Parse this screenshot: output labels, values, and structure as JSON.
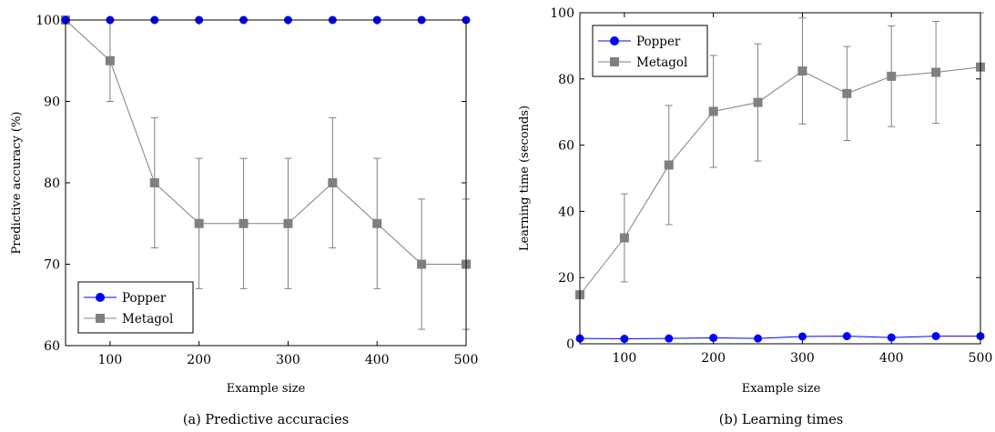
{
  "chart_data": [
    {
      "type": "line",
      "caption": "(a) Predictive accuracies",
      "xlabel": "Example size",
      "ylabel": "Predictive accuracy (%)",
      "xlim": [
        50,
        500
      ],
      "ylim": [
        60,
        100
      ],
      "xticks": [
        100,
        200,
        300,
        400,
        500
      ],
      "yticks": [
        60,
        70,
        80,
        90,
        100
      ],
      "legend_position": "bottom-left",
      "x": [
        50,
        100,
        150,
        200,
        250,
        300,
        350,
        400,
        450,
        500
      ],
      "series": [
        {
          "name": "Popper",
          "color": "#0000ff",
          "marker": "circle",
          "values": [
            100,
            100,
            100,
            100,
            100,
            100,
            100,
            100,
            100,
            100
          ]
        },
        {
          "name": "Metagol",
          "color": "#808080",
          "marker": "square",
          "values": [
            100,
            95,
            80,
            75,
            75,
            75,
            80,
            75,
            70,
            70
          ],
          "error_low": [
            100,
            90,
            72,
            67,
            67,
            67,
            72,
            67,
            62,
            62
          ],
          "error_high": [
            100,
            100,
            88,
            83,
            83,
            83,
            88,
            83,
            78,
            78
          ]
        }
      ]
    },
    {
      "type": "line",
      "caption": "(b) Learning times",
      "xlabel": "Example size",
      "ylabel": "Learning time (seconds)",
      "xlim": [
        50,
        500
      ],
      "ylim": [
        0,
        100
      ],
      "xticks": [
        100,
        200,
        300,
        400,
        500
      ],
      "yticks": [
        0,
        20,
        40,
        60,
        80,
        100
      ],
      "legend_position": "top-left",
      "x": [
        50,
        100,
        150,
        200,
        250,
        300,
        350,
        400,
        450,
        500
      ],
      "series": [
        {
          "name": "Popper",
          "color": "#0000ff",
          "marker": "circle",
          "values": [
            1.6,
            1.5,
            1.6,
            1.8,
            1.6,
            2.2,
            2.3,
            1.9,
            2.3,
            2.3
          ]
        },
        {
          "name": "Metagol",
          "color": "#808080",
          "marker": "square",
          "values": [
            14.8,
            32,
            54,
            70.2,
            72.9,
            82.4,
            75.6,
            80.8,
            82,
            83.6
          ],
          "error_low": [
            14.8,
            18.7,
            36,
            53.3,
            55.2,
            66.4,
            61.4,
            65.6,
            66.6,
            83.6
          ],
          "error_high": [
            14.8,
            45.3,
            72,
            87.1,
            90.6,
            98.4,
            89.8,
            96,
            97.4,
            100
          ]
        }
      ]
    }
  ]
}
